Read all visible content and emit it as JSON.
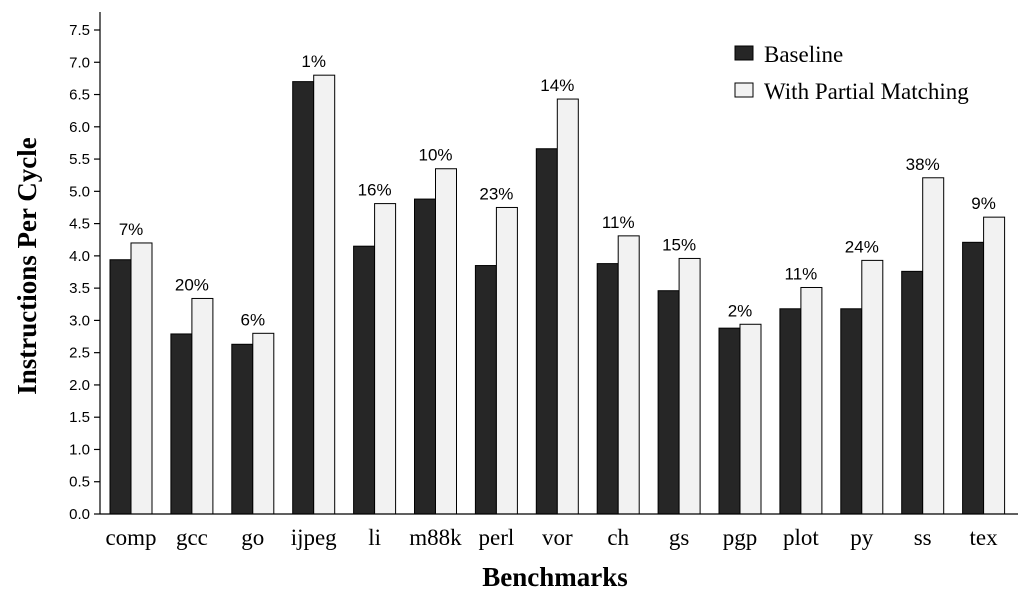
{
  "chart_data": {
    "type": "bar",
    "xlabel": "Benchmarks",
    "ylabel": "Instructions Per Cycle",
    "ylim": [
      0,
      7.5
    ],
    "yticks": [
      "0.0",
      "0.5",
      "1.0",
      "1.5",
      "2.0",
      "2.5",
      "3.0",
      "3.5",
      "4.0",
      "4.5",
      "5.0",
      "5.5",
      "6.0",
      "6.5",
      "7.0",
      "7.5"
    ],
    "categories": [
      "comp",
      "gcc",
      "go",
      "ijpeg",
      "li",
      "m88k",
      "perl",
      "vor",
      "ch",
      "gs",
      "pgp",
      "plot",
      "py",
      "ss",
      "tex"
    ],
    "series": [
      {
        "name": "Baseline",
        "color": "#262626",
        "values": [
          3.94,
          2.79,
          2.63,
          6.7,
          4.15,
          4.88,
          3.85,
          5.66,
          3.88,
          3.46,
          2.88,
          3.18,
          3.18,
          3.76,
          4.21
        ]
      },
      {
        "name": "With Partial Matching",
        "color": "#f2f2f2",
        "values": [
          4.2,
          3.34,
          2.8,
          6.8,
          4.81,
          5.35,
          4.75,
          6.43,
          4.31,
          3.96,
          2.94,
          3.51,
          3.93,
          5.21,
          4.6
        ]
      }
    ],
    "annotations": [
      "7%",
      "20%",
      "6%",
      "1%",
      "16%",
      "10%",
      "23%",
      "14%",
      "11%",
      "15%",
      "2%",
      "11%",
      "24%",
      "38%",
      "9%"
    ],
    "grid": false,
    "legend_position": "top-right"
  }
}
